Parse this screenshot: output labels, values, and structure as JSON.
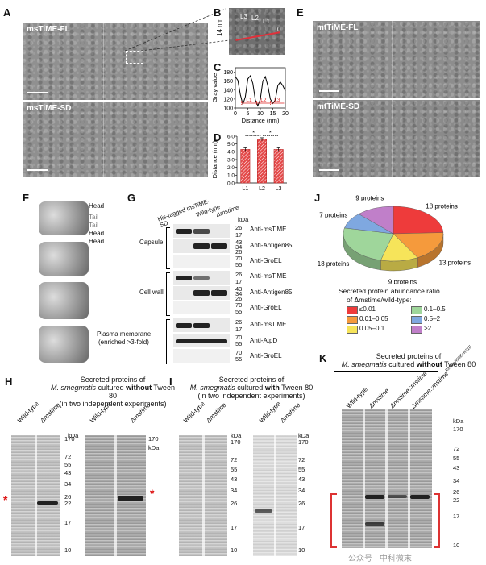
{
  "panels": {
    "A": {
      "label": "A",
      "top_title": "msTiME-FL",
      "bottom_title": "msTiME-SD"
    },
    "B": {
      "label": "B",
      "scale": "14 nm",
      "layers": [
        "L3",
        "L2",
        "L1"
      ],
      "zero": "0"
    },
    "C": {
      "label": "C",
      "ylabel": "Gray value",
      "xlabel": "Distance (nm)",
      "yticks": [
        "180",
        "160",
        "140",
        "120",
        "100"
      ],
      "xticks": [
        "0",
        "5",
        "10",
        "15",
        "20"
      ],
      "markers": [
        "L1",
        "L2",
        "L3"
      ]
    },
    "D": {
      "label": "D",
      "ylabel": "Distance (nm)",
      "yticks": [
        "6.0",
        "5.0",
        "4.0",
        "3.0",
        "2.0",
        "1.0",
        "0.0"
      ],
      "categories": [
        "L1",
        "L2",
        "L3"
      ],
      "sig": [
        "*",
        "*"
      ]
    },
    "E": {
      "label": "E",
      "top_title": "mtTiME-FL",
      "bottom_title": "mtTiME-SD"
    },
    "F": {
      "label": "F",
      "labels": [
        "Head",
        "Tail",
        "Tail",
        "Head",
        "Head"
      ]
    },
    "G": {
      "label": "G",
      "lanes": [
        "His-tagged msTiME-SD",
        "Wild-type",
        "Δmstime"
      ],
      "kda": "kDa",
      "groups": [
        {
          "name": "Capsule",
          "rows": [
            {
              "ab": "Anti-msTiME",
              "mw": [
                "26",
                "17"
              ]
            },
            {
              "ab": "Anti-Antigen85",
              "mw": [
                "43",
                "34",
                "26"
              ]
            },
            {
              "ab": "Anti-GroEL",
              "mw": [
                "70",
                "55"
              ]
            }
          ]
        },
        {
          "name": "Cell wall",
          "rows": [
            {
              "ab": "Anti-msTiME",
              "mw": [
                "26",
                "17"
              ]
            },
            {
              "ab": "Anti-Antigen85",
              "mw": [
                "43",
                "34",
                "26"
              ]
            },
            {
              "ab": "Anti-GroEL",
              "mw": [
                "70",
                "55"
              ]
            }
          ]
        },
        {
          "name": "Plasma membrane (enriched >3-fold)",
          "name1": "Plasma membrane",
          "name2": "(enriched >3-fold)",
          "rows": [
            {
              "ab": "Anti-msTiME",
              "mw": [
                "26",
                "17"
              ]
            },
            {
              "ab": "Anti-AtpD",
              "mw": [
                "70",
                "55"
              ]
            },
            {
              "ab": "Anti-GroEL",
              "mw": [
                "70",
                "55"
              ]
            }
          ]
        }
      ]
    },
    "H": {
      "label": "H",
      "title1": "Secreted proteins of",
      "title2a": "M. smegmatis",
      "title2b": " cultured ",
      "title2c": "without",
      "title2d": " Tween 80",
      "title3": "(in two independent experiments)",
      "lanes": [
        "Wild-type",
        "Δmstime",
        "Wild-type",
        "Δmstime"
      ],
      "kda": "kDa",
      "mw": [
        "170",
        "72",
        "55",
        "43",
        "34",
        "26",
        "22",
        "17",
        "10"
      ],
      "star": "*"
    },
    "I": {
      "label": "I",
      "title1": "Secreted proteins of",
      "title2a": "M. smegmatis",
      "title2b": " cultured ",
      "title2c": "with",
      "title2d": " Tween 80",
      "title3": "(in two independent experiments)",
      "lanes": [
        "Wild-type",
        "Δmstime",
        "Wild-type",
        "Δmstime"
      ],
      "kda": "kDa",
      "mw": [
        "170",
        "72",
        "55",
        "43",
        "34",
        "26",
        "17",
        "10"
      ]
    },
    "J": {
      "label": "J",
      "legend_title1": "Secreted protein abundance ratio",
      "legend_title2": "of Δmstime/wild-type:",
      "legend": [
        {
          "label": "≤0.01",
          "color": "#ee3b3b"
        },
        {
          "label": "0.1–0.5",
          "color": "#9fd69b"
        },
        {
          "label": "0.01–0.05",
          "color": "#f59a3c"
        },
        {
          "label": "0.5–2",
          "color": "#7fa8e0"
        },
        {
          "label": "0.05–0.1",
          "color": "#f6e45a"
        },
        {
          "label": ">2",
          "color": "#c07fc9"
        }
      ]
    },
    "K": {
      "label": "K",
      "title1": "Secreted proteins of",
      "title2a": "M. smegmatis",
      "title2b": " cultured ",
      "title2c": "without",
      "title2d": " Tween 80",
      "lanes": [
        "Wild-type",
        "Δmstime",
        "Δmstime::mstime",
        "Δmstime::mstime"
      ],
      "lane4_sup": "R25G+R28E+R31E",
      "kda": "kDa",
      "mw": [
        "170",
        "72",
        "55",
        "43",
        "34",
        "26",
        "22",
        "17",
        "10"
      ]
    }
  },
  "watermark": "公众号 · 中科微末",
  "chart_data": [
    {
      "type": "line",
      "title": "",
      "xlabel": "Distance (nm)",
      "ylabel": "Gray value",
      "xlim": [
        0,
        20
      ],
      "ylim": [
        100,
        190
      ],
      "x": [
        0,
        1,
        2,
        3,
        4,
        5,
        6,
        7,
        8,
        9,
        10,
        11,
        12,
        13,
        14,
        15,
        16,
        17,
        18,
        19,
        20
      ],
      "series": [
        {
          "values": [
            170,
            162,
            130,
            108,
            125,
            165,
            172,
            155,
            118,
            105,
            120,
            160,
            170,
            150,
            120,
            110,
            118,
            150,
            158,
            150,
            138
          ]
        }
      ]
    },
    {
      "type": "bar",
      "title": "",
      "ylabel": "Distance (nm)",
      "ylim": [
        0,
        6
      ],
      "categories": [
        "L1",
        "L2",
        "L3"
      ],
      "values": [
        4.3,
        5.6,
        4.3
      ],
      "errors": [
        0.2,
        0.2,
        0.2
      ],
      "bar_color": "#e44b4b"
    },
    {
      "type": "pie",
      "title": "",
      "categories": [
        "≤0.01",
        "0.01–0.05",
        "0.05–0.1",
        "0.1–0.5",
        "0.5–2",
        ">2"
      ],
      "values": [
        18,
        13,
        9,
        18,
        7,
        9
      ],
      "labels": [
        "18 proteins",
        "13 proteins",
        "9 proteins",
        "18 proteins",
        "7 proteins",
        "9 proteins"
      ],
      "colors": [
        "#ee3b3b",
        "#f59a3c",
        "#f6e45a",
        "#9fd69b",
        "#7fa8e0",
        "#c07fc9"
      ]
    }
  ]
}
